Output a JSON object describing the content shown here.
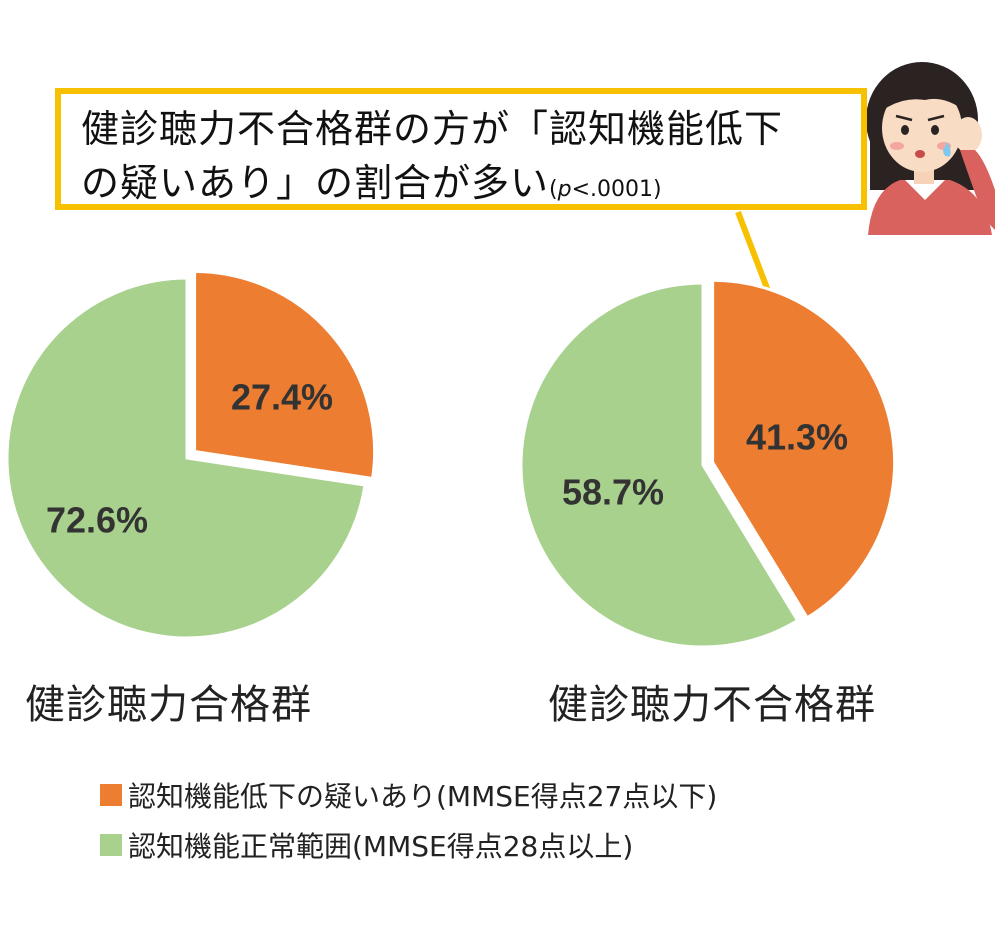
{
  "callout": {
    "line1": "健診聴力不合格群の方が「認知機能低下",
    "line2": "の疑いあり」の割合が多い",
    "p_prefix": "(",
    "p_symbol": "p",
    "p_rest": "<.0001)"
  },
  "colors": {
    "orange": "#ed7d31",
    "green": "#a9d18e",
    "callout_border": "#f7c000",
    "slice_label": "#333333"
  },
  "icons": {
    "person": "person-cupping-ear-icon"
  },
  "chart_data": [
    {
      "type": "pie",
      "title": "",
      "group_label": "健診聴力合格群",
      "slices": [
        {
          "name": "認知機能低下の疑いあり(MMSE得点27点以下)",
          "value": 27.4,
          "label": "27.4%",
          "color": "#ed7d31",
          "exploded": true
        },
        {
          "name": "認知機能正常範囲(MMSE得点28点以上)",
          "value": 72.6,
          "label": "72.6%",
          "color": "#a9d18e",
          "exploded": false
        }
      ]
    },
    {
      "type": "pie",
      "title": "",
      "group_label": "健診聴力不合格群",
      "slices": [
        {
          "name": "認知機能低下の疑いあり(MMSE得点27点以下)",
          "value": 41.3,
          "label": "41.3%",
          "color": "#ed7d31",
          "exploded": true
        },
        {
          "name": "認知機能正常範囲(MMSE得点28点以上)",
          "value": 58.7,
          "label": "58.7%",
          "color": "#a9d18e",
          "exploded": false
        }
      ]
    }
  ],
  "legend": {
    "placement": "bottom",
    "items": [
      {
        "label": "認知機能低下の疑いあり(MMSE得点27点以下)",
        "color": "#ed7d31"
      },
      {
        "label": "認知機能正常範囲(MMSE得点28点以上)",
        "color": "#a9d18e"
      }
    ]
  }
}
